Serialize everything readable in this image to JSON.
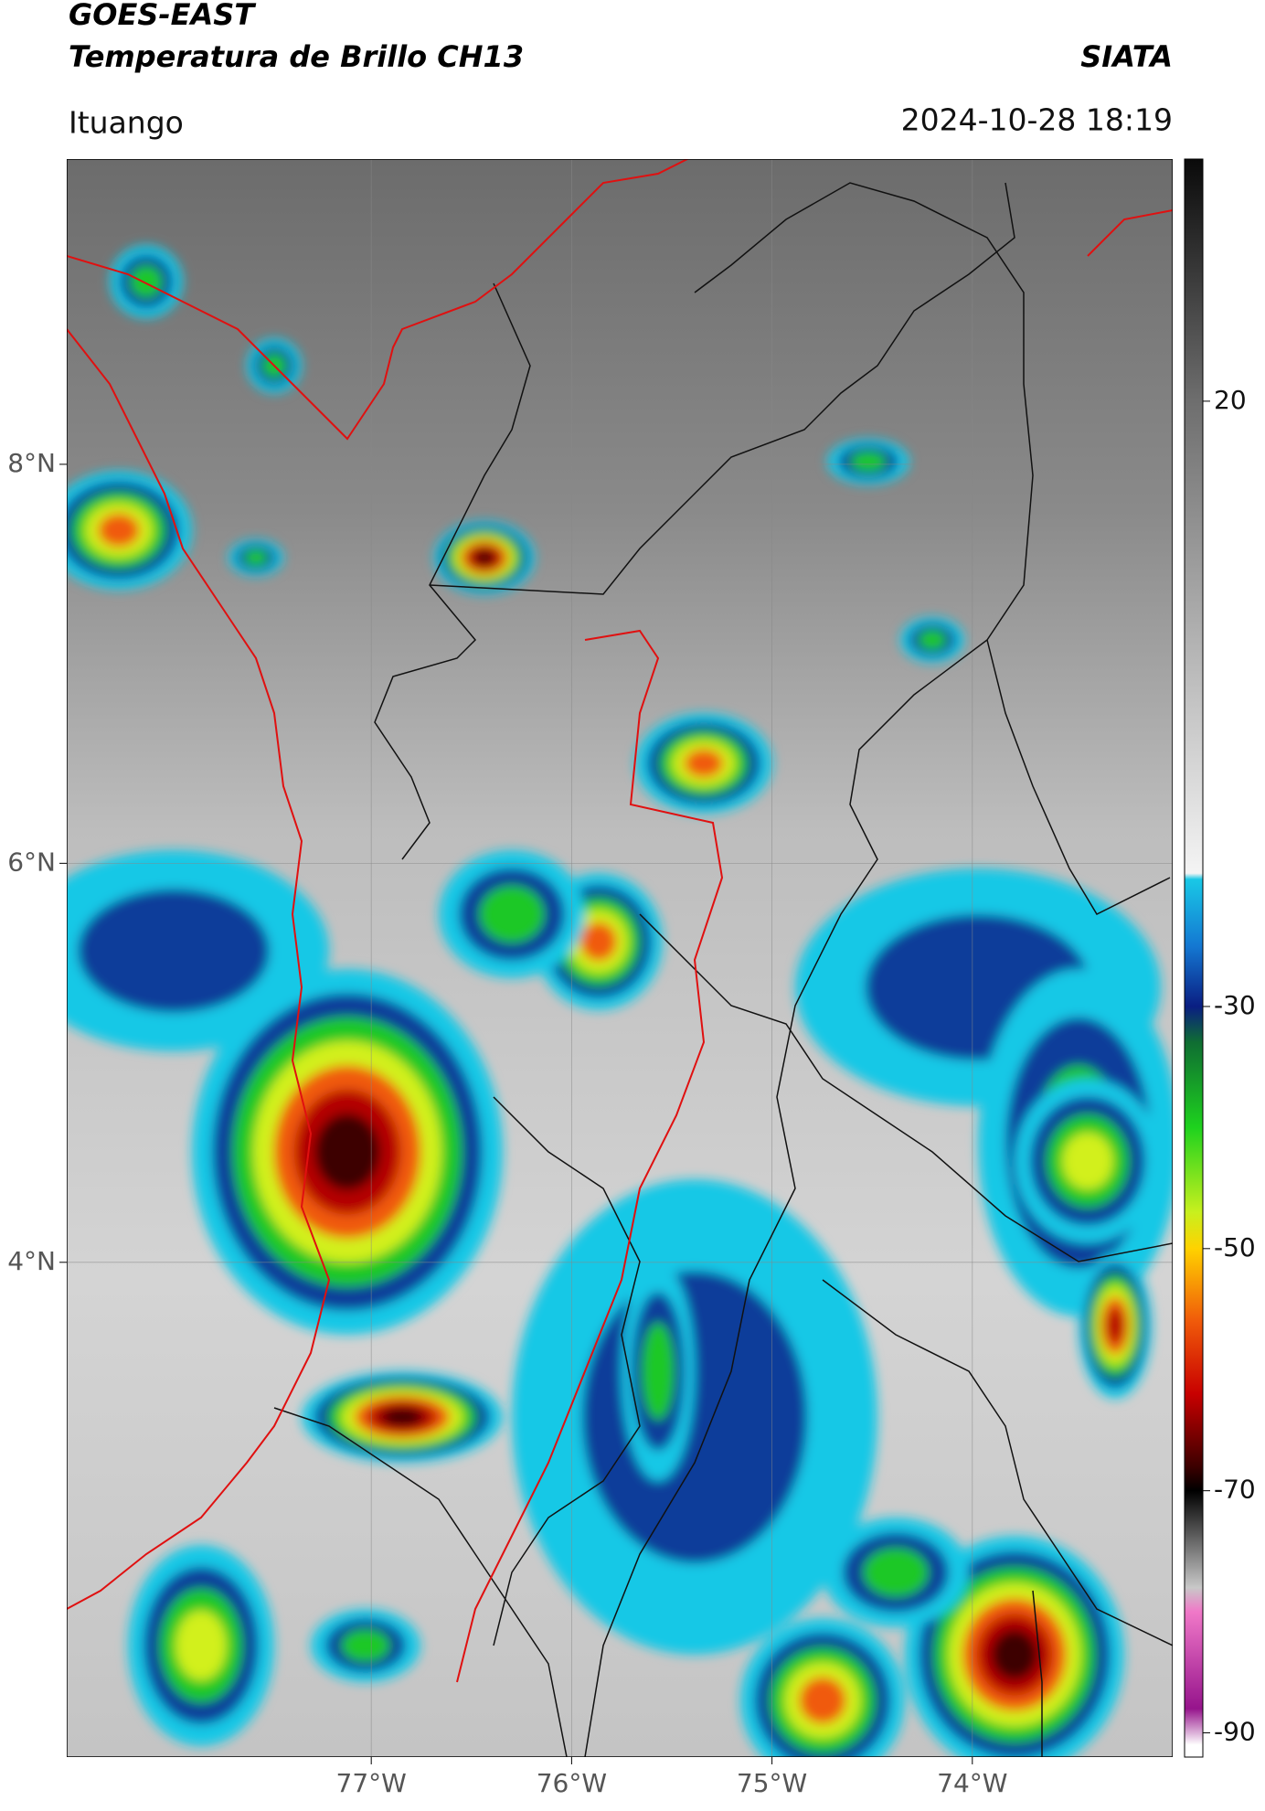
{
  "header": {
    "title": "GOES-EAST",
    "subtitle": "Temperatura de Brillo CH13",
    "source": "SIATA",
    "location": "Ituango",
    "datetime": "2024-10-28 18:19"
  },
  "map": {
    "xlim": [
      -78.52,
      -73.0
    ],
    "ylim": [
      1.52,
      9.53
    ],
    "xticks": [
      {
        "value": -77,
        "label": "77°W"
      },
      {
        "value": -76,
        "label": "76°W"
      },
      {
        "value": -75,
        "label": "75°W"
      },
      {
        "value": -74,
        "label": "74°W"
      }
    ],
    "yticks": [
      {
        "value": 8,
        "label": "8°N"
      },
      {
        "value": 6,
        "label": "6°N"
      },
      {
        "value": 4,
        "label": "4°N"
      }
    ],
    "grid": true
  },
  "colorbar": {
    "clim": [
      -92,
      40
    ],
    "ticks": [
      20,
      -30,
      -50,
      -70,
      -90
    ],
    "colorscale": [
      [
        40,
        "#0a0a0a"
      ],
      [
        20,
        "#6e6e6e"
      ],
      [
        -19,
        "#f4f4f4"
      ],
      [
        -19.5,
        "#19c8e6"
      ],
      [
        -25,
        "#1478d2"
      ],
      [
        -30,
        "#0a1e82"
      ],
      [
        -33,
        "#0f6e32"
      ],
      [
        -40,
        "#1ed21e"
      ],
      [
        -47,
        "#c8f01e"
      ],
      [
        -50,
        "#ffd200"
      ],
      [
        -56,
        "#f05a0a"
      ],
      [
        -62,
        "#c80000"
      ],
      [
        -68,
        "#3c0000"
      ],
      [
        -70,
        "#000000"
      ],
      [
        -78,
        "#c8c8c8"
      ],
      [
        -80,
        "#f078c8"
      ],
      [
        -88,
        "#96148c"
      ],
      [
        -91,
        "#ffffff"
      ]
    ]
  }
}
